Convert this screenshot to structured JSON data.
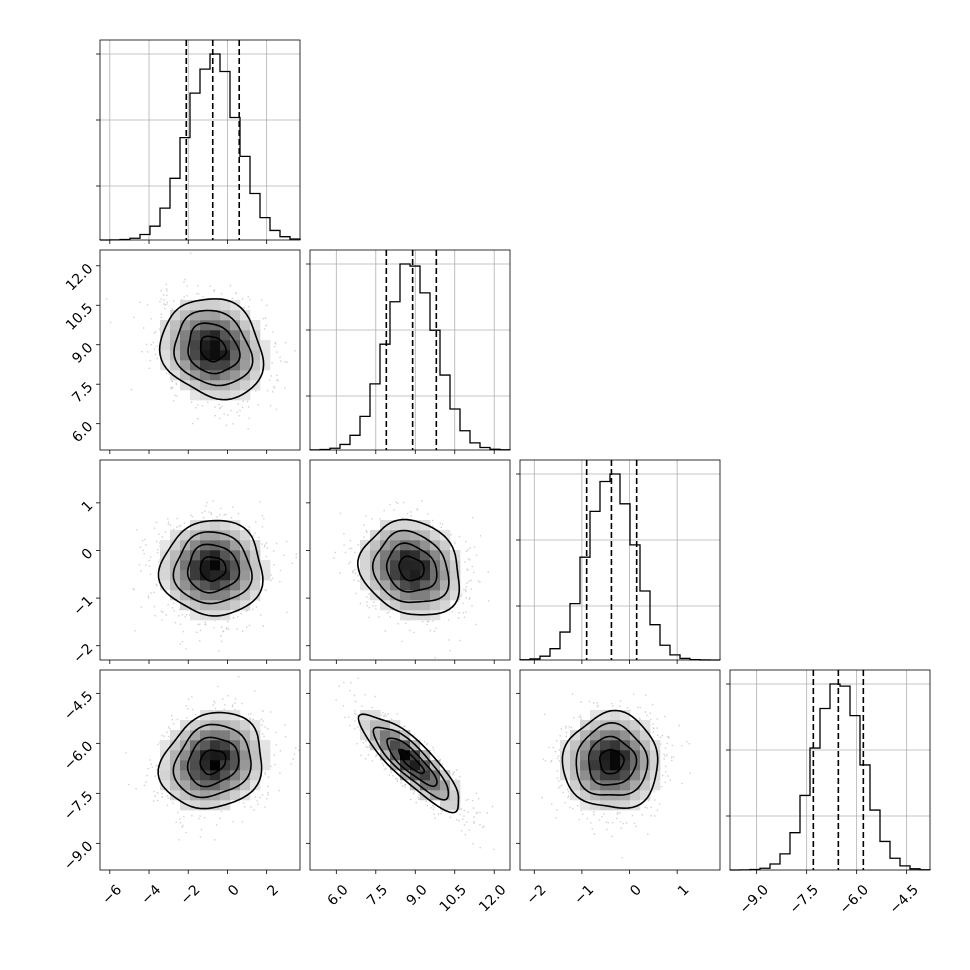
{
  "chart_data": {
    "type": "corner",
    "parameters": [
      {
        "range": [
          -6.5,
          3.7
        ],
        "ticks": [
          "−6",
          "−4",
          "−2",
          "0",
          "2"
        ],
        "tick_values": [
          -6,
          -4,
          -2,
          0,
          2
        ],
        "mean": -0.75,
        "sd": 1.3,
        "quantiles": [
          -2.1,
          -0.75,
          0.6
        ]
      },
      {
        "range": [
          5.0,
          12.6
        ],
        "ticks": [
          "6.0",
          "7.5",
          "9.0",
          "10.5",
          "12.0"
        ],
        "tick_values": [
          6.0,
          7.5,
          9.0,
          10.5,
          12.0
        ],
        "mean": 8.85,
        "sd": 0.95,
        "quantiles": [
          7.9,
          8.9,
          9.8
        ]
      },
      {
        "range": [
          -2.3,
          1.9
        ],
        "ticks": [
          "−2",
          "−1",
          "0",
          "1"
        ],
        "tick_values": [
          -2,
          -1,
          0,
          1
        ],
        "mean": -0.38,
        "sd": 0.5,
        "quantiles": [
          -0.9,
          -0.38,
          0.15
        ]
      },
      {
        "range": [
          -9.8,
          -3.8
        ],
        "ticks": [
          "−9.0",
          "−7.5",
          "−6.0",
          "−4.5"
        ],
        "tick_values": [
          -9.0,
          -7.5,
          -6.0,
          -4.5
        ],
        "mean": -6.55,
        "sd": 0.72,
        "quantiles": [
          -7.3,
          -6.55,
          -5.8
        ]
      }
    ],
    "correlations": [
      [
        0,
        1,
        -0.15
      ],
      [
        0,
        2,
        0.0
      ],
      [
        1,
        2,
        -0.15
      ],
      [
        0,
        3,
        0.15
      ],
      [
        1,
        3,
        -0.85
      ],
      [
        2,
        3,
        0.0
      ]
    ],
    "histogram_bins": 20,
    "contour_levels_sigma": [
      0.5,
      1.0,
      1.5,
      2.0
    ],
    "grid": true,
    "title": "",
    "xlabel": "",
    "ylabel": ""
  }
}
